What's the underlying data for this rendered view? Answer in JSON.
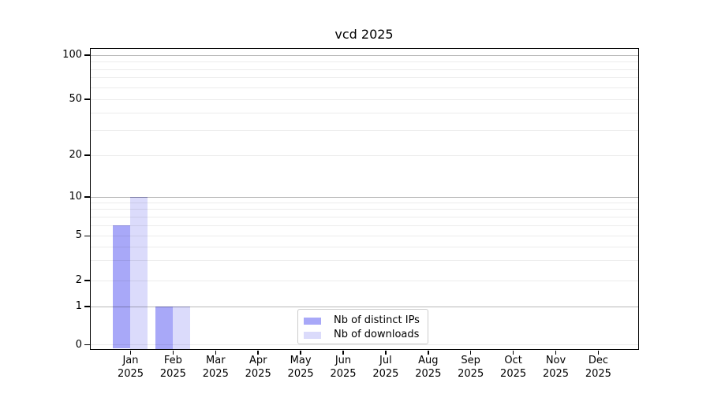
{
  "chart_data": {
    "type": "bar",
    "title": "vcd 2025",
    "categories": [
      "Jan",
      "Feb",
      "Mar",
      "Apr",
      "May",
      "Jun",
      "Jul",
      "Aug",
      "Sep",
      "Oct",
      "Nov",
      "Dec"
    ],
    "year_label": "2025",
    "series": [
      {
        "name": "Nb of distinct IPs",
        "color": "#a8a8f8",
        "values": [
          6,
          1,
          0,
          0,
          0,
          0,
          0,
          0,
          0,
          0,
          0,
          0
        ]
      },
      {
        "name": "Nb of downloads",
        "color": "#dbdbfb",
        "values": [
          10,
          1,
          0,
          0,
          0,
          0,
          0,
          0,
          0,
          0,
          0,
          0
        ]
      }
    ],
    "y_axis": {
      "tick_labels": [
        "0",
        "1",
        "2",
        "5",
        "10",
        "20",
        "50",
        "100"
      ],
      "tick_values": [
        0,
        1,
        2,
        5,
        10,
        20,
        50,
        100
      ],
      "scale": "symlog",
      "ylim": [
        0,
        100
      ],
      "major_grid_values": [
        1,
        10,
        100
      ],
      "minor_grid_values": [
        0,
        2,
        5,
        20,
        50,
        3,
        4,
        6,
        7,
        8,
        9,
        30,
        40,
        60,
        70,
        80,
        90
      ]
    },
    "xlabel": "",
    "ylabel": "",
    "legend": {
      "position": "bottom-center"
    }
  }
}
